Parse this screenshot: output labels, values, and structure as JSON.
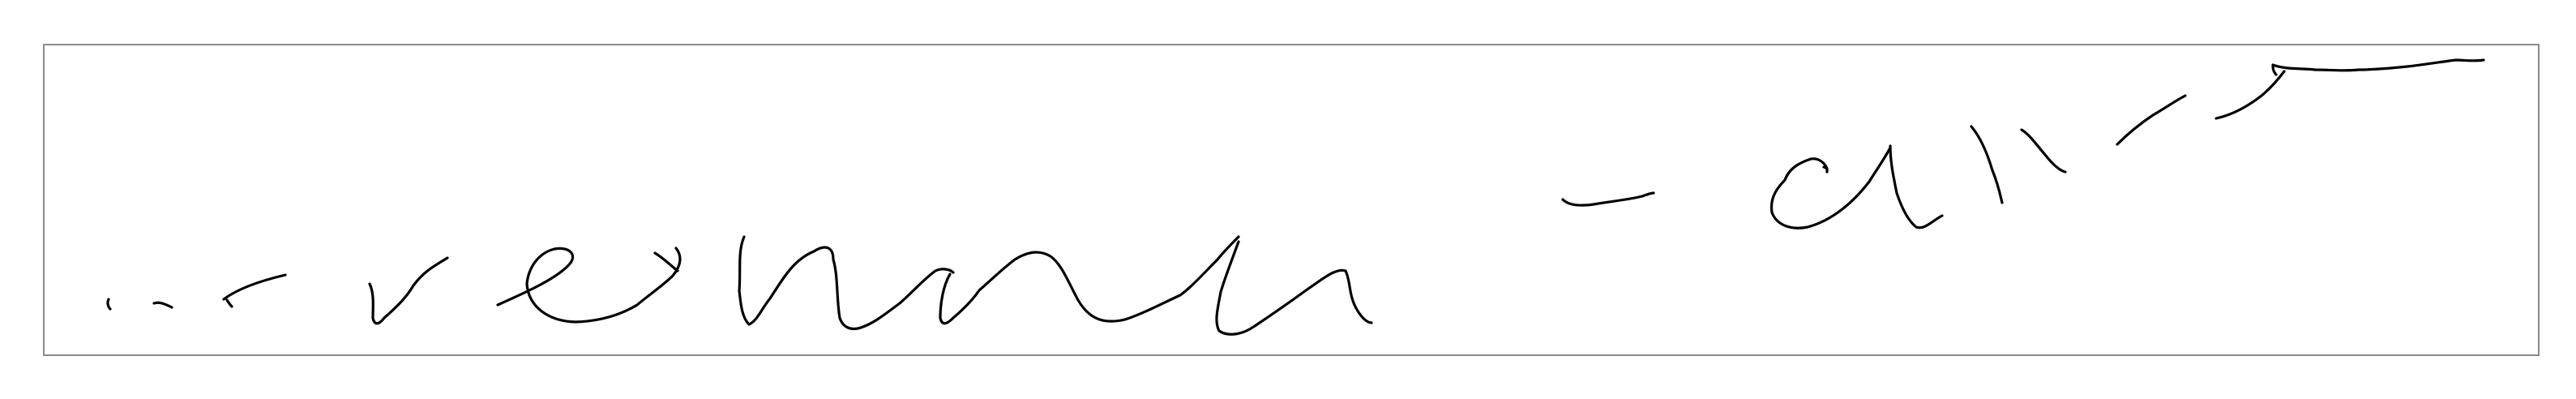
{
  "canvas": {
    "background_color": "#ffffff",
    "frame_color": "#8a8a8a",
    "ink_color": "#000000",
    "content": "handwritten-ink-strokes"
  }
}
